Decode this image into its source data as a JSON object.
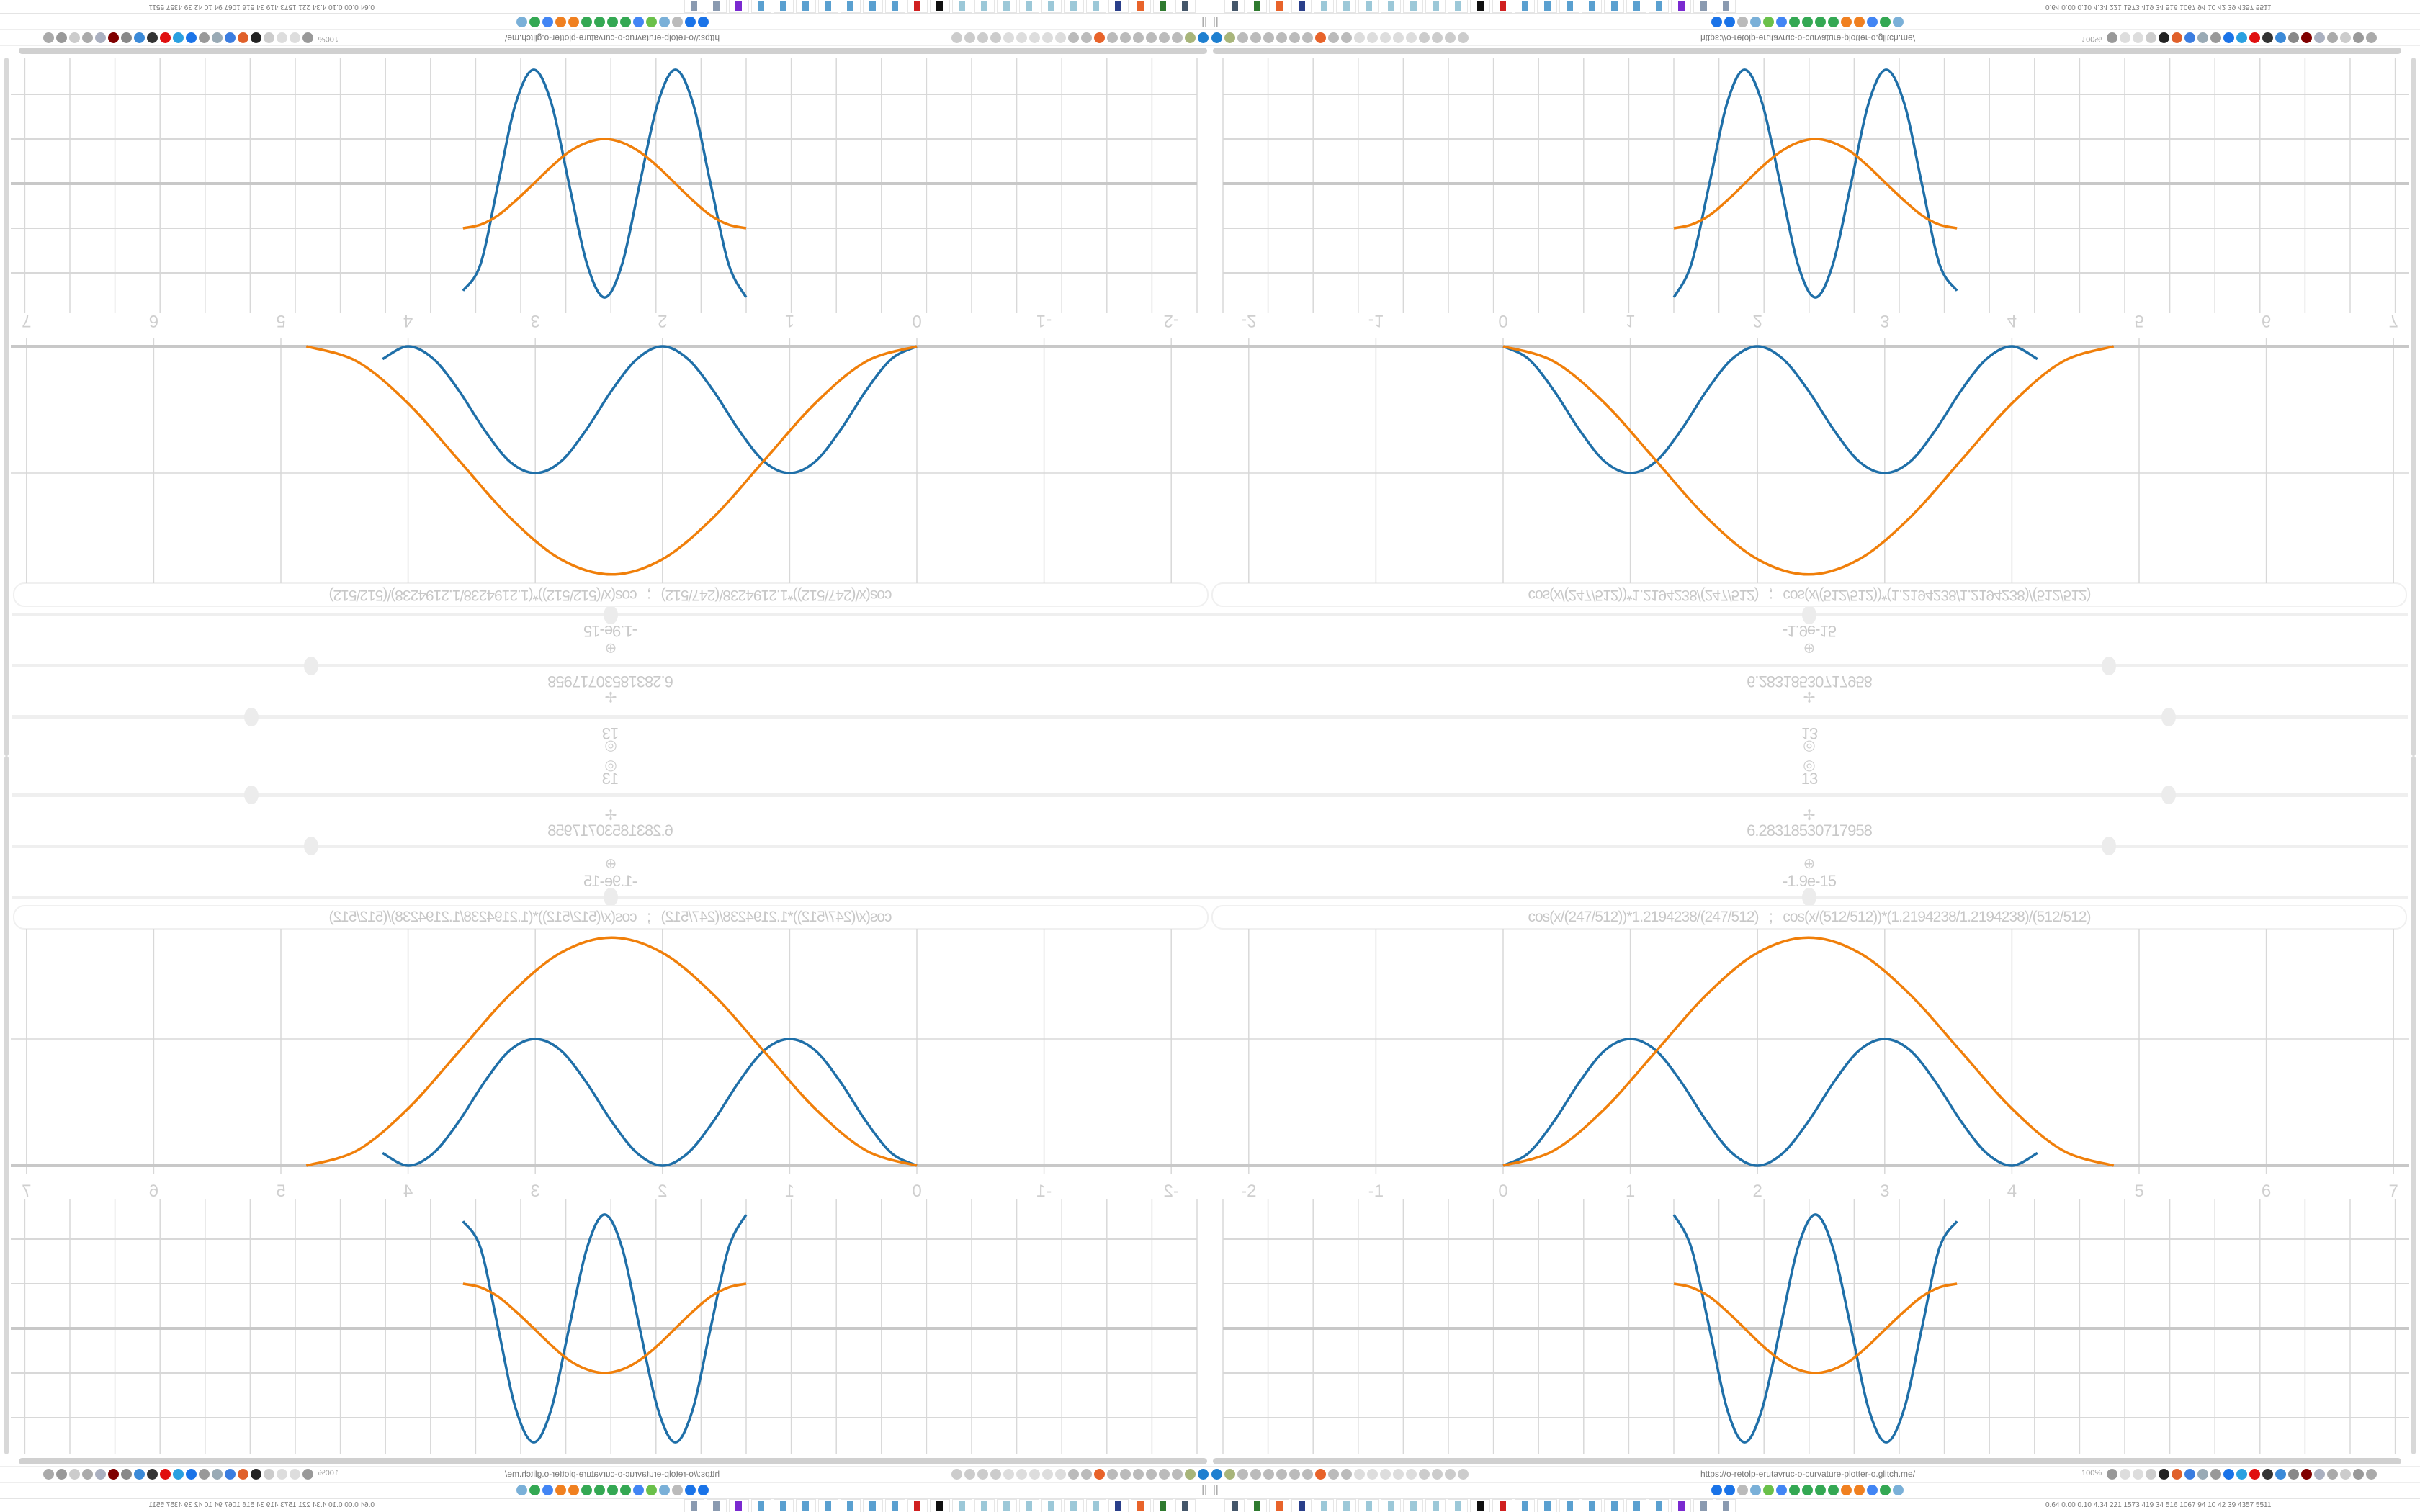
{
  "browser": {
    "url": "https://o-retolp-erutavruc-o-curvature-plotter-o.glitch.me/",
    "zoom": "100%",
    "pause_glyph": "||",
    "nav_icons_left": [
      {
        "name": "filter-icon",
        "color": "#1e7fd0"
      },
      {
        "name": "extension-icon",
        "color": "#a8b57a"
      },
      {
        "name": "globe-icon",
        "color": "#bbbbbb"
      },
      {
        "name": "globe-icon",
        "color": "#bbbbbb"
      },
      {
        "name": "headphones-icon",
        "color": "#bbbbbb"
      },
      {
        "name": "headphones-icon",
        "color": "#bbbbbb"
      },
      {
        "name": "globe-icon",
        "color": "#bbbbbb"
      },
      {
        "name": "wrench-icon",
        "color": "#bbbbbb"
      },
      {
        "name": "firefox-icon",
        "color": "#e8632a"
      },
      {
        "name": "gear-icon",
        "color": "#bbbbbb"
      },
      {
        "name": "globe-icon",
        "color": "#bbbbbb"
      },
      {
        "name": "dot-icon",
        "color": "#dddddd"
      },
      {
        "name": "dot-icon",
        "color": "#dddddd"
      },
      {
        "name": "dot-icon",
        "color": "#dddddd"
      },
      {
        "name": "dot-icon",
        "color": "#dddddd"
      },
      {
        "name": "dot-icon",
        "color": "#dddddd"
      },
      {
        "name": "folder-icon",
        "color": "#cccccc"
      },
      {
        "name": "back-arrow-icon",
        "color": "#cccccc"
      },
      {
        "name": "shield-icon",
        "color": "#cccccc"
      },
      {
        "name": "lock-icon",
        "color": "#cccccc"
      }
    ],
    "nav_icons_right": [
      {
        "name": "translate-icon",
        "color": "#999999"
      },
      {
        "name": "star-icon",
        "color": "#dddddd"
      },
      {
        "name": "forward-arrow-icon",
        "color": "#dddddd"
      },
      {
        "name": "reload-icon",
        "color": "#cccccc"
      },
      {
        "name": "download-icon",
        "color": "#222222"
      },
      {
        "name": "color-picker-icon",
        "color": "#e0602a"
      },
      {
        "name": "translate-icon",
        "color": "#3b7de0"
      },
      {
        "name": "mouse-icon",
        "color": "#99aab5"
      },
      {
        "name": "gear-icon",
        "color": "#999999"
      },
      {
        "name": "add-icon",
        "color": "#1a73e8"
      },
      {
        "name": "shield-download-icon",
        "color": "#2aa0e0"
      },
      {
        "name": "record-icon",
        "color": "#e01010"
      },
      {
        "name": "trash-icon",
        "color": "#333333"
      },
      {
        "name": "share-icon",
        "color": "#3b8ad8"
      },
      {
        "name": "archive-icon",
        "color": "#888888"
      },
      {
        "name": "ublock-icon",
        "color": "#800000"
      },
      {
        "name": "privacy-icon",
        "color": "#aab0c0"
      },
      {
        "name": "globe-icon",
        "color": "#aaaaaa"
      },
      {
        "name": "puzzle-icon",
        "color": "#cccccc"
      },
      {
        "name": "wrench-icon",
        "color": "#999999"
      },
      {
        "name": "gear-icon",
        "color": "#aaaaaa"
      }
    ],
    "bookmark_icons": [
      {
        "name": "mail-icon",
        "color": "#1a73e8"
      },
      {
        "name": "bookmark-icon",
        "color": "#1a73e8"
      },
      {
        "name": "bookmark-icon",
        "color": "#bbbbbb"
      },
      {
        "name": "snowflake-icon",
        "color": "#7ab0d8"
      },
      {
        "name": "feather-icon",
        "color": "#6ac04a"
      },
      {
        "name": "google-icon",
        "color": "#4285f4"
      },
      {
        "name": "google-icon",
        "color": "#34a853"
      },
      {
        "name": "google-icon",
        "color": "#34a853"
      },
      {
        "name": "google-icon",
        "color": "#34a853"
      },
      {
        "name": "google-icon",
        "color": "#34a853"
      },
      {
        "name": "gear-orange-icon",
        "color": "#f08020"
      },
      {
        "name": "gear-orange-icon",
        "color": "#f08020"
      },
      {
        "name": "google-icon",
        "color": "#4285f4"
      },
      {
        "name": "google-icon",
        "color": "#34a853"
      },
      {
        "name": "snowflake-icon",
        "color": "#7ab0d8"
      }
    ],
    "taskbar_icons": [
      {
        "name": "monitor-icon",
        "color": "#44566a"
      },
      {
        "name": "terminal-icon",
        "color": "#2f7a2f"
      },
      {
        "name": "firefox-icon",
        "color": "#e8632a"
      },
      {
        "name": "floppy-icon",
        "color": "#2a3f8a"
      },
      {
        "name": "notepad-icon",
        "color": "#9cc8d8"
      },
      {
        "name": "notepad-icon",
        "color": "#9cc8d8"
      },
      {
        "name": "notepad-icon",
        "color": "#9cc8d8"
      },
      {
        "name": "notepad-icon",
        "color": "#9cc8d8"
      },
      {
        "name": "notepad-icon",
        "color": "#9cc8d8"
      },
      {
        "name": "notepad-icon",
        "color": "#9cc8d8"
      },
      {
        "name": "notepad-icon",
        "color": "#9cc8d8"
      },
      {
        "name": "inkscape-icon",
        "color": "#111111"
      },
      {
        "name": "settings-red-icon",
        "color": "#d02020"
      },
      {
        "name": "calculator-icon",
        "color": "#5aa0d0"
      },
      {
        "name": "calculator-icon",
        "color": "#5aa0d0"
      },
      {
        "name": "calculator-icon",
        "color": "#5aa0d0"
      },
      {
        "name": "calculator-icon",
        "color": "#5aa0d0"
      },
      {
        "name": "calculator-icon",
        "color": "#5aa0d0"
      },
      {
        "name": "calculator-icon",
        "color": "#5aa0d0"
      },
      {
        "name": "calculator-icon",
        "color": "#5aa0d0"
      },
      {
        "name": "privacy-mask-icon",
        "color": "#7a2ad0"
      },
      {
        "name": "document-icon",
        "color": "#8a9ab0"
      },
      {
        "name": "document-icon",
        "color": "#8a9ab0"
      }
    ],
    "status_numbers": "0.64 0.00 0.10 4.34  221  1573 419   34   516  1067  94    10    42    39  4357 5511"
  },
  "panel": {
    "formula": "cos(x/(247/512))*1.2194238/(247/512)   ;   cos(x/(512/512))*(1.2194238/1.2194238)/(512/512)",
    "center_value": "13",
    "center_icon": "◎",
    "period_value": "6.28318530717958",
    "period_icon": "✢",
    "offset_value": "-1.9e-15",
    "offset_icon": "⊕",
    "slider_levels": {
      "center": 0.8,
      "period": 0.75,
      "offset": 0.5
    }
  },
  "colors": {
    "blue": "#1f6fa8",
    "orange": "#f07f0a",
    "grid": "#d8d8d8",
    "axis": "#c8c8c8"
  },
  "chart_data": [
    {
      "type": "line",
      "xlim": [
        -2,
        7
      ],
      "ticks_x": [
        "-2",
        "-1",
        "0",
        "1",
        "2",
        "3",
        "4",
        "5",
        "6",
        "7"
      ],
      "grid": true,
      "series": [
        {
          "color": "#1f6fa8",
          "x": [
            0,
            0.2,
            0.4,
            0.6,
            0.8,
            1,
            1.2,
            1.4,
            1.6,
            1.8,
            2,
            2.2,
            2.4,
            2.6,
            2.8,
            3,
            3.2,
            3.4,
            3.6,
            3.8,
            4,
            4.2
          ],
          "y": [
            0,
            0.1,
            0.35,
            0.66,
            0.91,
            1,
            0.91,
            0.66,
            0.35,
            0.1,
            0,
            0.1,
            0.35,
            0.66,
            0.91,
            1,
            0.91,
            0.66,
            0.35,
            0.1,
            0,
            0.1
          ]
        },
        {
          "color": "#f07f0a",
          "x": [
            0,
            0.4,
            0.8,
            1.2,
            1.6,
            2.0,
            2.4,
            2.8,
            3.2,
            3.6,
            4.0,
            4.4,
            4.8
          ],
          "y": [
            0,
            0.12,
            0.45,
            0.9,
            1.35,
            1.68,
            1.8,
            1.68,
            1.35,
            0.9,
            0.45,
            0.12,
            0
          ]
        }
      ]
    },
    {
      "type": "line",
      "grid": true,
      "series": [
        {
          "color": "#1f6fa8",
          "x": [
            0,
            0.39,
            0.79,
            1.18,
            1.57,
            1.96,
            2.36,
            2.75,
            3.14,
            3.53,
            3.93,
            4.32,
            4.71,
            5.11,
            5.5,
            5.89,
            6.28
          ],
          "y": [
            2.55,
            1.8,
            0,
            -1.8,
            -2.55,
            -1.8,
            0,
            1.8,
            2.55,
            1.8,
            0,
            -1.8,
            -2.55,
            -1.8,
            0,
            1.8,
            2.4
          ]
        },
        {
          "color": "#f07f0a",
          "x": [
            0,
            0.39,
            0.79,
            1.18,
            1.57,
            1.96,
            2.36,
            2.75,
            3.14,
            3.53,
            3.93,
            4.32,
            4.71,
            5.11,
            5.5,
            5.89,
            6.28
          ],
          "y": [
            1,
            0.92,
            0.71,
            0.38,
            0,
            -0.38,
            -0.71,
            -0.92,
            -1,
            -0.92,
            -0.71,
            -0.38,
            0,
            0.38,
            0.71,
            0.92,
            1
          ]
        }
      ]
    }
  ]
}
